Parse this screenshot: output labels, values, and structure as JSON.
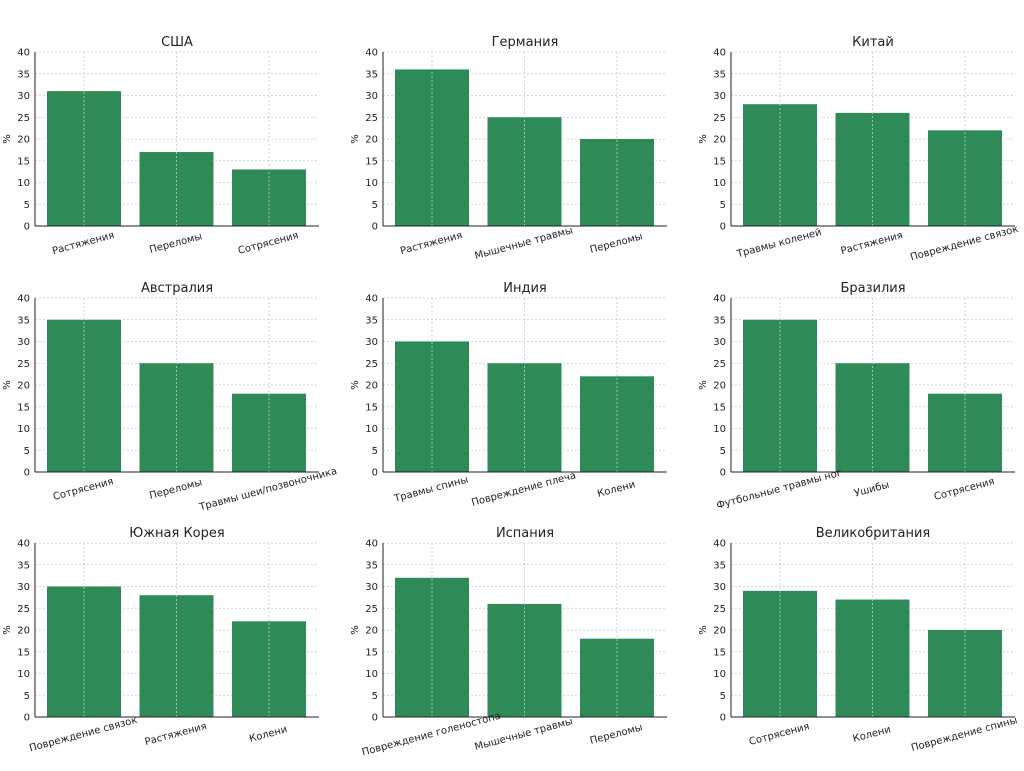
{
  "colors": {
    "bar": "#2e8b57",
    "grid": "#c8c8c8",
    "text": "#222222"
  },
  "chart_data": [
    {
      "type": "bar",
      "title": "США",
      "ylabel": "%",
      "ylim": [
        0,
        40
      ],
      "yticks": [
        0,
        5,
        10,
        15,
        20,
        25,
        30,
        35,
        40
      ],
      "grid": true,
      "categories": [
        "Растяжения",
        "Переломы",
        "Сотрясения"
      ],
      "values": [
        31,
        17,
        13
      ]
    },
    {
      "type": "bar",
      "title": "Германия",
      "ylabel": "%",
      "ylim": [
        0,
        40
      ],
      "yticks": [
        0,
        5,
        10,
        15,
        20,
        25,
        30,
        35,
        40
      ],
      "grid": true,
      "categories": [
        "Растяжения",
        "Мышечные травмы",
        "Переломы"
      ],
      "values": [
        36,
        25,
        20
      ]
    },
    {
      "type": "bar",
      "title": "Китай",
      "ylabel": "%",
      "ylim": [
        0,
        40
      ],
      "yticks": [
        0,
        5,
        10,
        15,
        20,
        25,
        30,
        35,
        40
      ],
      "grid": true,
      "categories": [
        "Травмы коленей",
        "Растяжения",
        "Повреждение связок"
      ],
      "values": [
        28,
        26,
        22
      ]
    },
    {
      "type": "bar",
      "title": "Австралия",
      "ylabel": "%",
      "ylim": [
        0,
        40
      ],
      "yticks": [
        0,
        5,
        10,
        15,
        20,
        25,
        30,
        35,
        40
      ],
      "grid": true,
      "categories": [
        "Сотрясения",
        "Переломы",
        "Травмы шеи/позвоночника"
      ],
      "values": [
        35,
        25,
        18
      ]
    },
    {
      "type": "bar",
      "title": "Индия",
      "ylabel": "%",
      "ylim": [
        0,
        40
      ],
      "yticks": [
        0,
        5,
        10,
        15,
        20,
        25,
        30,
        35,
        40
      ],
      "grid": true,
      "categories": [
        "Травмы спины",
        "Повреждение плеча",
        "Колени"
      ],
      "values": [
        30,
        25,
        22
      ]
    },
    {
      "type": "bar",
      "title": "Бразилия",
      "ylabel": "%",
      "ylim": [
        0,
        40
      ],
      "yticks": [
        0,
        5,
        10,
        15,
        20,
        25,
        30,
        35,
        40
      ],
      "grid": true,
      "categories": [
        "Футбольные травмы ног",
        "Ушибы",
        "Сотрясения"
      ],
      "values": [
        35,
        25,
        18
      ]
    },
    {
      "type": "bar",
      "title": "Южная Корея",
      "ylabel": "%",
      "ylim": [
        0,
        40
      ],
      "yticks": [
        0,
        5,
        10,
        15,
        20,
        25,
        30,
        35,
        40
      ],
      "grid": true,
      "categories": [
        "Повреждение связок",
        "Растяжения",
        "Колени"
      ],
      "values": [
        30,
        28,
        22
      ]
    },
    {
      "type": "bar",
      "title": "Испания",
      "ylabel": "%",
      "ylim": [
        0,
        40
      ],
      "yticks": [
        0,
        5,
        10,
        15,
        20,
        25,
        30,
        35,
        40
      ],
      "grid": true,
      "categories": [
        "Повреждение голеностопа",
        "Мышечные травмы",
        "Переломы"
      ],
      "values": [
        32,
        26,
        18
      ]
    },
    {
      "type": "bar",
      "title": "Великобритания",
      "ylabel": "%",
      "ylim": [
        0,
        40
      ],
      "yticks": [
        0,
        5,
        10,
        15,
        20,
        25,
        30,
        35,
        40
      ],
      "grid": true,
      "categories": [
        "Сотрясения",
        "Колени",
        "Повреждение спины"
      ],
      "values": [
        29,
        27,
        20
      ]
    }
  ]
}
